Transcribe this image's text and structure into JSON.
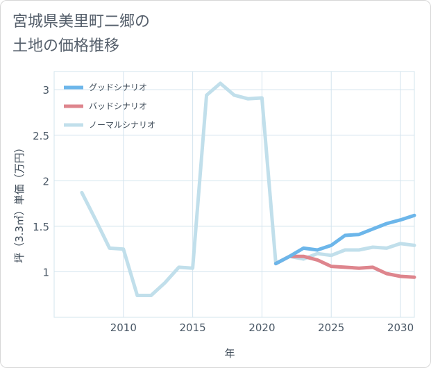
{
  "chart_data": {
    "type": "line",
    "title": [
      "宮城県美里町二郷の",
      "土地の価格推移"
    ],
    "xlabel": "年",
    "ylabel": "坪（3.3㎡）単価（万円）",
    "xlim": [
      2005,
      2031
    ],
    "ylim": [
      0.5,
      3.2
    ],
    "xticks": [
      2010,
      2015,
      2020,
      2025,
      2030
    ],
    "yticks": [
      1,
      1.5,
      2,
      2.5,
      3
    ],
    "ytick_labels": [
      "1",
      "1.5",
      "2",
      "2.5",
      "3"
    ],
    "grid": true,
    "legend_position": "top-left",
    "series": [
      {
        "name": "グッドシナリオ",
        "color": "#6cb6ea",
        "x": [
          2021,
          2022,
          2023,
          2024,
          2025,
          2026,
          2027,
          2028,
          2029,
          2030,
          2031
        ],
        "values": [
          1.09,
          1.17,
          1.26,
          1.24,
          1.29,
          1.4,
          1.41,
          1.47,
          1.53,
          1.57,
          1.62
        ]
      },
      {
        "name": "バッドシナリオ",
        "color": "#de858d",
        "x": [
          2021,
          2022,
          2023,
          2024,
          2025,
          2026,
          2027,
          2028,
          2029,
          2030,
          2031
        ],
        "values": [
          1.09,
          1.17,
          1.17,
          1.13,
          1.06,
          1.05,
          1.04,
          1.05,
          0.98,
          0.95,
          0.94
        ]
      },
      {
        "name": "ノーマルシナリオ",
        "color": "#c1dfeb",
        "x": [
          2007,
          2008,
          2009,
          2010,
          2011,
          2012,
          2013,
          2014,
          2015,
          2016,
          2017,
          2018,
          2019,
          2020,
          2021,
          2022,
          2023,
          2024,
          2025,
          2026,
          2027,
          2028,
          2029,
          2030,
          2031
        ],
        "values": [
          1.87,
          1.57,
          1.26,
          1.25,
          0.74,
          0.74,
          0.88,
          1.05,
          1.04,
          2.94,
          3.07,
          2.94,
          2.9,
          2.91,
          1.09,
          1.17,
          1.14,
          1.2,
          1.18,
          1.24,
          1.24,
          1.27,
          1.26,
          1.31,
          1.29
        ]
      }
    ]
  }
}
